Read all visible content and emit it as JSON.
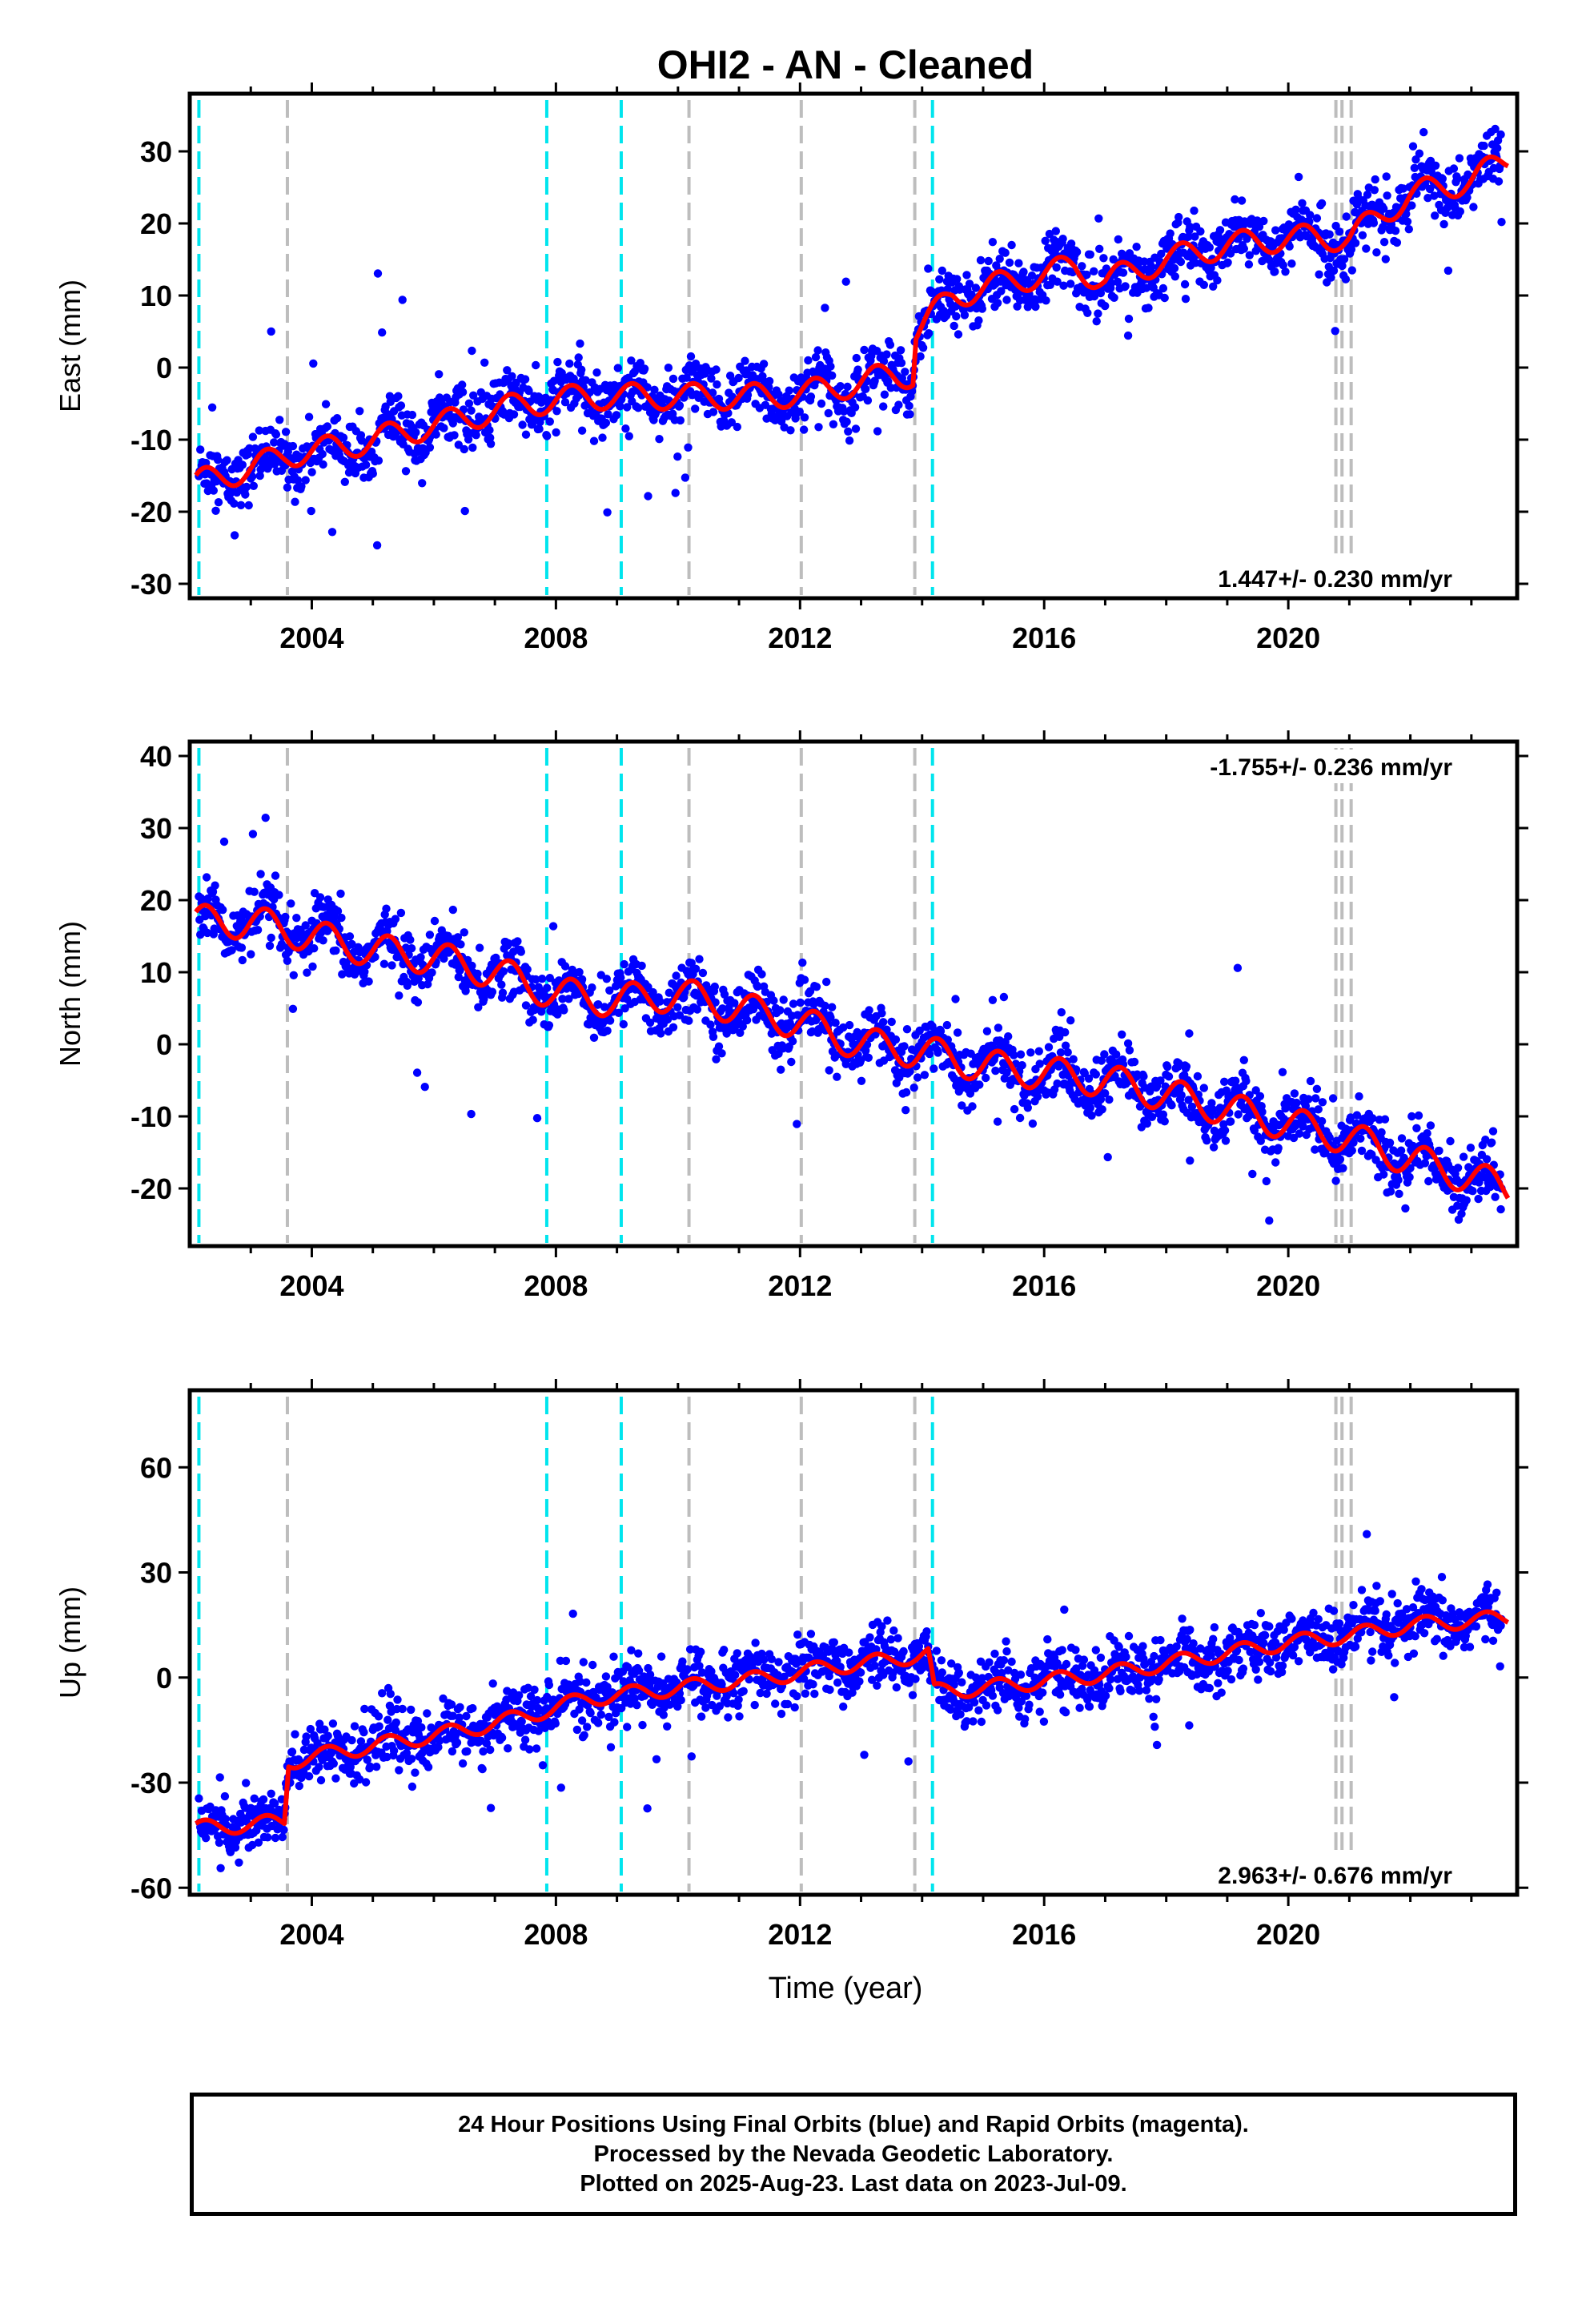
{
  "chart_data": {
    "title": "OHI2  - AN - Cleaned",
    "xlabel": "Time (year)",
    "xlim": [
      2002.0,
      2023.75
    ],
    "x_ticks": [
      2004,
      2008,
      2012,
      2016,
      2020
    ],
    "events": {
      "cyan_dashed": [
        2002.15,
        2007.85,
        2009.07,
        2014.17
      ],
      "gray_dashed": [
        2003.6,
        2010.18,
        2012.02,
        2013.88,
        2020.78,
        2020.88,
        2021.03
      ]
    },
    "panels": [
      {
        "type": "scatter",
        "name": "east",
        "ylabel": "East (mm)",
        "ylim": [
          -32,
          38
        ],
        "y_ticks": [
          -30,
          -20,
          -10,
          0,
          10,
          20,
          30
        ],
        "rate_label": "1.447+/- 0.230 mm/yr",
        "rate_position": "bottom-right",
        "model_points": [
          [
            2002.1,
            -16
          ],
          [
            2003.0,
            -14
          ],
          [
            2003.6,
            -12
          ],
          [
            2004.5,
            -11
          ],
          [
            2005.5,
            -9
          ],
          [
            2006.5,
            -7
          ],
          [
            2007.5,
            -5
          ],
          [
            2008.5,
            -4
          ],
          [
            2009.5,
            -4
          ],
          [
            2010.5,
            -4
          ],
          [
            2011.5,
            -4
          ],
          [
            2012.5,
            -3
          ],
          [
            2013.5,
            -1
          ],
          [
            2013.85,
            -1
          ],
          [
            2013.9,
            5
          ],
          [
            2014.5,
            10
          ],
          [
            2015.5,
            12
          ],
          [
            2016.5,
            14
          ],
          [
            2017.0,
            12
          ],
          [
            2018.0,
            15
          ],
          [
            2019.0,
            17
          ],
          [
            2020.0,
            18
          ],
          [
            2020.8,
            18
          ],
          [
            2021.0,
            18
          ],
          [
            2022.0,
            24
          ],
          [
            2023.0,
            26
          ],
          [
            2023.6,
            29
          ]
        ],
        "seasonal_amp": 1.8
      },
      {
        "type": "scatter",
        "name": "north",
        "ylabel": "North (mm)",
        "ylim": [
          -28,
          42
        ],
        "y_ticks": [
          -20,
          -10,
          0,
          10,
          20,
          30,
          40
        ],
        "rate_label": "-1.755+/- 0.236 mm/yr",
        "rate_position": "top-right",
        "model_points": [
          [
            2002.1,
            17
          ],
          [
            2003.0,
            17
          ],
          [
            2004.0,
            15
          ],
          [
            2005.0,
            13
          ],
          [
            2006.0,
            12
          ],
          [
            2007.0,
            10
          ],
          [
            2008.0,
            7
          ],
          [
            2009.0,
            6
          ],
          [
            2010.0,
            7
          ],
          [
            2011.0,
            5
          ],
          [
            2012.0,
            3
          ],
          [
            2013.0,
            0
          ],
          [
            2014.0,
            -1
          ],
          [
            2015.0,
            -3
          ],
          [
            2016.0,
            -4
          ],
          [
            2017.0,
            -5
          ],
          [
            2018.0,
            -7
          ],
          [
            2019.0,
            -9
          ],
          [
            2020.0,
            -11
          ],
          [
            2021.0,
            -13
          ],
          [
            2022.0,
            -16
          ],
          [
            2023.6,
            -20
          ]
        ],
        "seasonal_amp": 2.3
      },
      {
        "type": "scatter",
        "name": "up",
        "ylabel": "Up (mm)",
        "ylim": [
          -62,
          82
        ],
        "y_ticks": [
          -60,
          -30,
          0,
          30,
          60
        ],
        "rate_label": "2.963+/- 0.676 mm/yr",
        "rate_position": "bottom-right",
        "model_points": [
          [
            2002.1,
            -43
          ],
          [
            2003.0,
            -42
          ],
          [
            2003.55,
            -41
          ],
          [
            2003.62,
            -24
          ],
          [
            2004.5,
            -21
          ],
          [
            2005.5,
            -18
          ],
          [
            2006.5,
            -15
          ],
          [
            2007.5,
            -11
          ],
          [
            2008.5,
            -6
          ],
          [
            2009.5,
            -4
          ],
          [
            2010.5,
            -2
          ],
          [
            2011.5,
            0
          ],
          [
            2012.5,
            3
          ],
          [
            2013.5,
            5
          ],
          [
            2014.1,
            7
          ],
          [
            2014.2,
            -4
          ],
          [
            2015.0,
            -3
          ],
          [
            2016.0,
            -1
          ],
          [
            2017.0,
            1
          ],
          [
            2018.0,
            4
          ],
          [
            2019.0,
            7
          ],
          [
            2020.0,
            10
          ],
          [
            2021.0,
            12
          ],
          [
            2022.0,
            15
          ],
          [
            2023.6,
            17
          ]
        ],
        "seasonal_amp": 2.2
      }
    ]
  },
  "footer": {
    "line1": "24 Hour Positions Using Final Orbits (blue) and Rapid Orbits (magenta).",
    "line2": "Processed by the Nevada Geodetic Laboratory.",
    "line3": "Plotted on 2025-Aug-23. Last data on 2023-Jul-09."
  },
  "colors": {
    "data": "#0000ff",
    "model": "#ff0000",
    "cyan_line": "#00e5ee",
    "gray_line": "#bdbdbd"
  }
}
